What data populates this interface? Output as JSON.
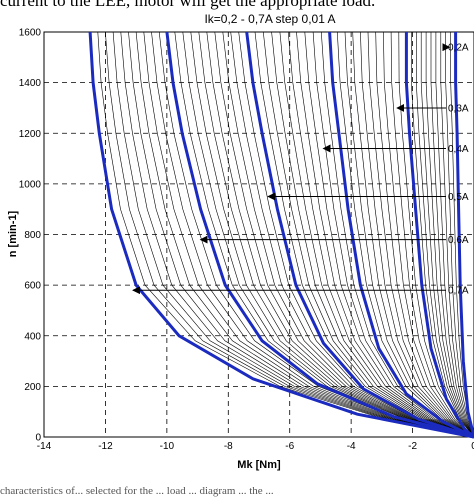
{
  "caption_top": "current to the LEE, motor will get the appropriate load.",
  "caption_bottom": "characteristics of... selected for the ... load ... diagram ... the ...",
  "chart_data": {
    "type": "line",
    "title": "Ik=0,2 - 0,7A step 0,01 A",
    "xlabel": "Mk [Nm]",
    "ylabel": "n [min-1]",
    "xlim": [
      -14,
      0
    ],
    "ylim": [
      0,
      1600
    ],
    "xticks": [
      "-14",
      "-12",
      "-10",
      "-8",
      "-6",
      "-4",
      "-2",
      "0"
    ],
    "yticks": [
      "0",
      "200",
      "400",
      "600",
      "800",
      "1000",
      "1200",
      "1400",
      "1600"
    ],
    "grid": true,
    "highlight_color": "#1b2bbf",
    "thin_color": "#000000",
    "thin_series_step_A": 0.01,
    "series": [
      {
        "name": "0,2A",
        "highlight": true,
        "points": [
          [
            -0.6,
            1600
          ],
          [
            -0.6,
            1400
          ],
          [
            -0.55,
            1200
          ],
          [
            -0.5,
            900
          ],
          [
            -0.45,
            600
          ],
          [
            -0.35,
            300
          ],
          [
            -0.2,
            100
          ],
          [
            0,
            0
          ]
        ]
      },
      {
        "name": "0,3A",
        "highlight": true,
        "points": [
          [
            -2.2,
            1600
          ],
          [
            -2.2,
            1400
          ],
          [
            -2.1,
            1200
          ],
          [
            -1.9,
            900
          ],
          [
            -1.7,
            600
          ],
          [
            -1.4,
            350
          ],
          [
            -0.9,
            150
          ],
          [
            -0.3,
            30
          ],
          [
            0,
            0
          ]
        ]
      },
      {
        "name": "0,4A",
        "highlight": true,
        "points": [
          [
            -4.7,
            1600
          ],
          [
            -4.6,
            1400
          ],
          [
            -4.4,
            1200
          ],
          [
            -4.1,
            900
          ],
          [
            -3.7,
            600
          ],
          [
            -3.1,
            350
          ],
          [
            -2.2,
            170
          ],
          [
            -1.0,
            60
          ],
          [
            0,
            0
          ]
        ]
      },
      {
        "name": "0,5A",
        "highlight": true,
        "points": [
          [
            -7.4,
            1600
          ],
          [
            -7.2,
            1400
          ],
          [
            -6.9,
            1200
          ],
          [
            -6.4,
            900
          ],
          [
            -5.8,
            600
          ],
          [
            -4.9,
            370
          ],
          [
            -3.6,
            190
          ],
          [
            -1.8,
            70
          ],
          [
            0,
            0
          ]
        ]
      },
      {
        "name": "0,6A",
        "highlight": true,
        "points": [
          [
            -10.0,
            1600
          ],
          [
            -9.8,
            1400
          ],
          [
            -9.5,
            1200
          ],
          [
            -8.9,
            900
          ],
          [
            -8.1,
            600
          ],
          [
            -6.9,
            380
          ],
          [
            -5.1,
            210
          ],
          [
            -2.6,
            80
          ],
          [
            0,
            0
          ]
        ]
      },
      {
        "name": "0,7A",
        "highlight": true,
        "points": [
          [
            -12.5,
            1600
          ],
          [
            -12.4,
            1400
          ],
          [
            -12.2,
            1200
          ],
          [
            -11.8,
            900
          ],
          [
            -11.0,
            600
          ],
          [
            -9.6,
            400
          ],
          [
            -7.2,
            230
          ],
          [
            -3.8,
            90
          ],
          [
            0,
            0
          ]
        ]
      }
    ],
    "annotations": [
      {
        "text": "0,2A",
        "x": -0.8,
        "y": 1540
      },
      {
        "text": "0,3A",
        "x": -2.5,
        "y": 1300
      },
      {
        "text": "0,4A",
        "x": -4.9,
        "y": 1140
      },
      {
        "text": "0,5A",
        "x": -6.7,
        "y": 950
      },
      {
        "text": "0,6A",
        "x": -8.9,
        "y": 780
      },
      {
        "text": "0,7A",
        "x": -11.1,
        "y": 580
      }
    ]
  }
}
